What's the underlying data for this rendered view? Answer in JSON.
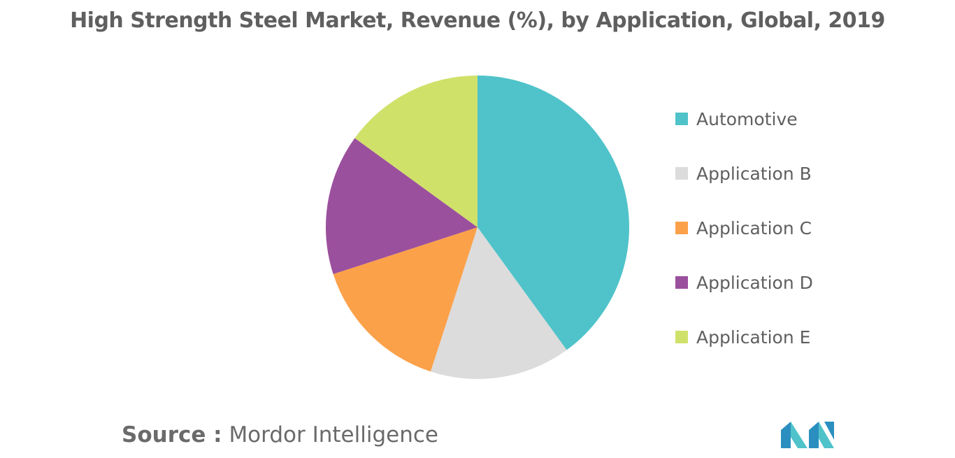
{
  "chart_data": {
    "type": "pie",
    "title": "High Strength Steel Market, Revenue (%), by Application, Global, 2019",
    "categories": [
      "Automotive",
      "Application B",
      "Application C",
      "Application D",
      "Application E"
    ],
    "values": [
      40,
      15,
      15,
      15,
      15
    ],
    "colors": [
      "#4fc3c9",
      "#dcdcdc",
      "#fba14a",
      "#9b509d",
      "#d0e16a"
    ],
    "start_angle_deg": 0,
    "direction": "clockwise",
    "legend_position": "right"
  },
  "source": {
    "label": "Source :",
    "value": "Mordor Intelligence"
  },
  "logo": {
    "icon": "mordor-intelligence-logo-icon",
    "colors": [
      "#2a8fbf",
      "#4fc3c9"
    ]
  }
}
